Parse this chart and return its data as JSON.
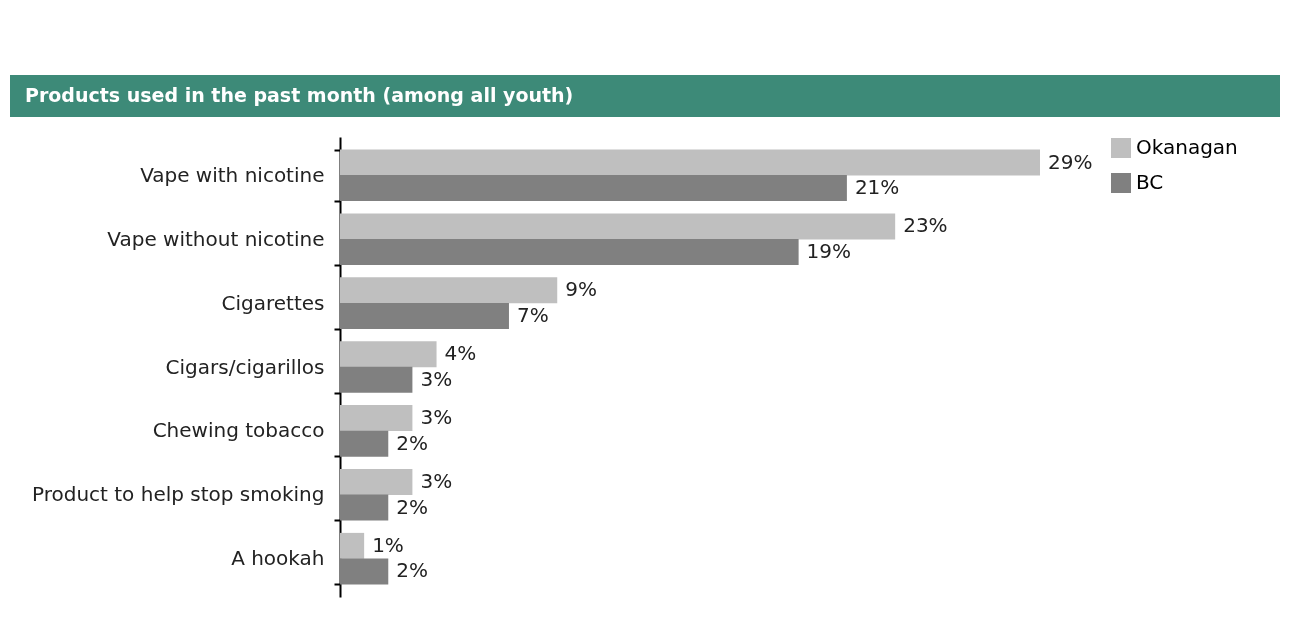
{
  "chart_data": {
    "type": "bar",
    "orientation": "horizontal",
    "title": "Products used in the past month (among all youth)",
    "legend": "top right",
    "categories": [
      "Vape with nicotine",
      "Vape without nicotine",
      "Cigarettes",
      "Cigars/cigarillos",
      "Chewing tobacco",
      "Product to help stop smoking",
      "A hookah"
    ],
    "series": [
      {
        "name": "Okanagan",
        "color": "#bfbfbf",
        "values": [
          29,
          23,
          9,
          4,
          3,
          3,
          1
        ],
        "value_labels": [
          "29%",
          "23%",
          "9%",
          "4%",
          "3%",
          "3%",
          "1%"
        ]
      },
      {
        "name": "BC",
        "color": "#808080",
        "values": [
          21,
          19,
          7,
          3,
          2,
          2,
          2
        ],
        "value_labels": [
          "21%",
          "19%",
          "7%",
          "3%",
          "2%",
          "2%",
          "2%"
        ]
      }
    ]
  }
}
